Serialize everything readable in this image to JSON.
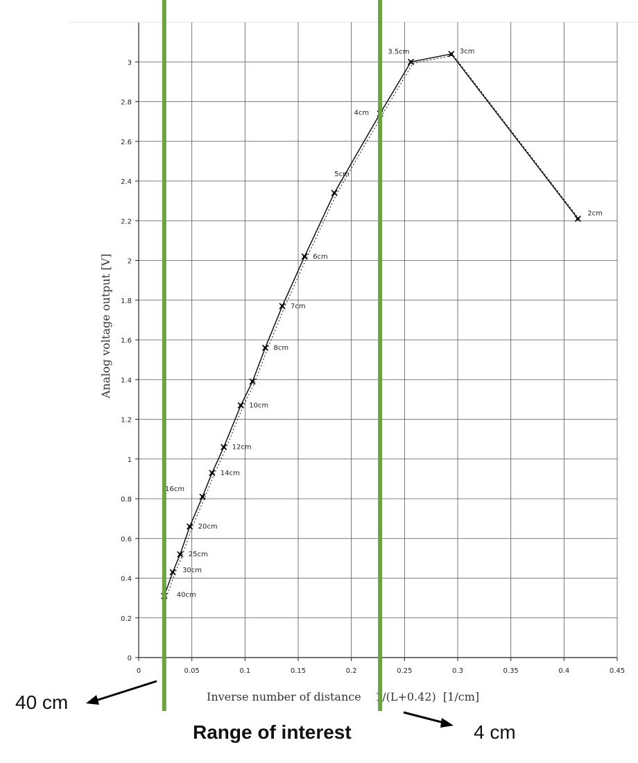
{
  "chart_data": {
    "type": "line",
    "xlabel": "Inverse number of distance    1/(L+0.42)  [1/cm]",
    "ylabel": "Analog voltage output [V]",
    "xlim": [
      0,
      0.45
    ],
    "ylim": [
      0,
      3.2
    ],
    "x_ticks": [
      "0",
      "0.05",
      "0.1",
      "0.15",
      "0.2",
      "0.25",
      "0.3",
      "0.35",
      "0.4",
      "0.45"
    ],
    "y_ticks": [
      "0",
      "0.2",
      "0.4",
      "0.6",
      "0.8",
      "1",
      "1.2",
      "1.4",
      "1.6",
      "1.8",
      "2",
      "2.2",
      "2.4",
      "2.6",
      "2.8",
      "3"
    ],
    "grid": true,
    "series": [
      {
        "points": [
          {
            "x": 0.024,
            "y": 0.31,
            "label": "40cm"
          },
          {
            "x": 0.032,
            "y": 0.43,
            "label": "30cm"
          },
          {
            "x": 0.039,
            "y": 0.52,
            "label": "25cm"
          },
          {
            "x": 0.048,
            "y": 0.66,
            "label": "20cm"
          },
          {
            "x": 0.06,
            "y": 0.81,
            "label": "16cm"
          },
          {
            "x": 0.069,
            "y": 0.93,
            "label": "14cm"
          },
          {
            "x": 0.08,
            "y": 1.06,
            "label": "12cm"
          },
          {
            "x": 0.096,
            "y": 1.27,
            "label": "10cm"
          },
          {
            "x": 0.107,
            "y": 1.39,
            "label": ""
          },
          {
            "x": 0.119,
            "y": 1.56,
            "label": "8cm"
          },
          {
            "x": 0.135,
            "y": 1.77,
            "label": "7cm"
          },
          {
            "x": 0.156,
            "y": 2.02,
            "label": "6cm"
          },
          {
            "x": 0.184,
            "y": 2.34,
            "label": "5cm"
          },
          {
            "x": 0.227,
            "y": 2.74,
            "label": "4cm"
          },
          {
            "x": 0.256,
            "y": 3.0,
            "label": "3.5cm"
          },
          {
            "x": 0.294,
            "y": 3.04,
            "label": "3cm"
          },
          {
            "x": 0.413,
            "y": 2.21,
            "label": "2cm"
          }
        ]
      }
    ],
    "range_of_interest": {
      "x": [
        0.024,
        0.227
      ],
      "color": "#6aa244"
    }
  },
  "annotations": {
    "left_arrow_label": "40 cm",
    "right_arrow_label": "4 cm",
    "range_label": "Range of interest"
  }
}
